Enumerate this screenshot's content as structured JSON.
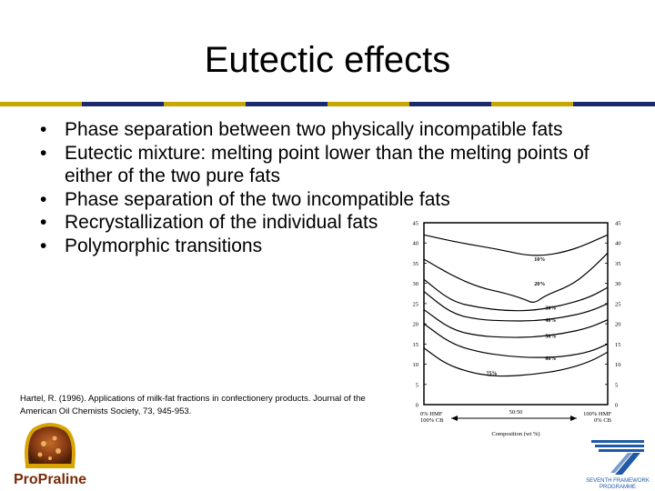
{
  "slide": {
    "title": "Eutectic effects",
    "rule_colors": [
      "#c8a600",
      "#1a2a6c",
      "#c8a600",
      "#1a2a6c",
      "#c8a600",
      "#1a2a6c",
      "#c8a600",
      "#1a2a6c"
    ],
    "bullets": [
      "Phase separation between two physically incompatible fats",
      "Eutectic mixture: melting point lower than the melting points of either of the two pure fats",
      "Phase separation of the two incompatible fats",
      "Recrystallization of the individual fats",
      "Polymorphic transitions"
    ],
    "citation": "Hartel, R. (1996). Applications of milk-fat fractions in confectionery products. Journal of the American Oil Chemists Society, 73, 945-953."
  },
  "chart_data": {
    "type": "line",
    "y_ticks": [
      "45",
      "40",
      "35",
      "30",
      "25",
      "20",
      "15",
      "10",
      "5",
      "0"
    ],
    "ylim": [
      0,
      45
    ],
    "xlim": [
      0,
      100
    ],
    "x_left_label": [
      "0% HMF",
      "100% CB"
    ],
    "x_mid_label": "50:50",
    "x_right_label": [
      "100% HMF",
      "0% CB"
    ],
    "xlabel": "Composition (wt %)",
    "series": [
      {
        "name": "10%",
        "label_at": [
          60,
          35.5
        ],
        "x": [
          0,
          20,
          40,
          60,
          80,
          100
        ],
        "y": [
          42,
          40,
          38.5,
          36.5,
          38,
          42
        ]
      },
      {
        "name": "20%",
        "label_at": [
          60,
          29.5
        ],
        "x": [
          0,
          15,
          30,
          45,
          55,
          60,
          66,
          80,
          90,
          100
        ],
        "y": [
          36,
          32,
          29,
          27.5,
          26,
          25,
          27,
          29.5,
          33,
          37.5
        ]
      },
      {
        "name": "30%",
        "label_at": [
          66,
          23.5
        ],
        "x": [
          0,
          15,
          30,
          45,
          60,
          75,
          90,
          100
        ],
        "y": [
          31,
          25.5,
          24,
          23.2,
          23.3,
          24.5,
          26.5,
          29
        ]
      },
      {
        "name": "40%",
        "label_at": [
          66,
          20.5
        ],
        "x": [
          0,
          15,
          30,
          45,
          60,
          75,
          90,
          100
        ],
        "y": [
          28,
          22.5,
          21,
          20.7,
          20.7,
          21.5,
          23,
          25
        ]
      },
      {
        "name": "50%",
        "label_at": [
          66,
          16.5
        ],
        "x": [
          0,
          15,
          30,
          45,
          60,
          75,
          90,
          100
        ],
        "y": [
          23.5,
          18.5,
          17,
          16.6,
          16.7,
          17.5,
          19,
          21
        ]
      },
      {
        "name": "60%",
        "label_at": [
          66,
          11
        ],
        "x": [
          0,
          15,
          30,
          45,
          60,
          75,
          90,
          100
        ],
        "y": [
          20,
          15,
          13,
          12,
          11.6,
          11.8,
          13,
          15
        ]
      },
      {
        "name": "75%",
        "label_at": [
          34,
          7.3
        ],
        "x": [
          0,
          12,
          25,
          35,
          45,
          60,
          75,
          90,
          100
        ],
        "y": [
          14,
          10,
          8,
          7.2,
          7,
          7.5,
          8.5,
          10.5,
          13
        ]
      }
    ]
  }
}
